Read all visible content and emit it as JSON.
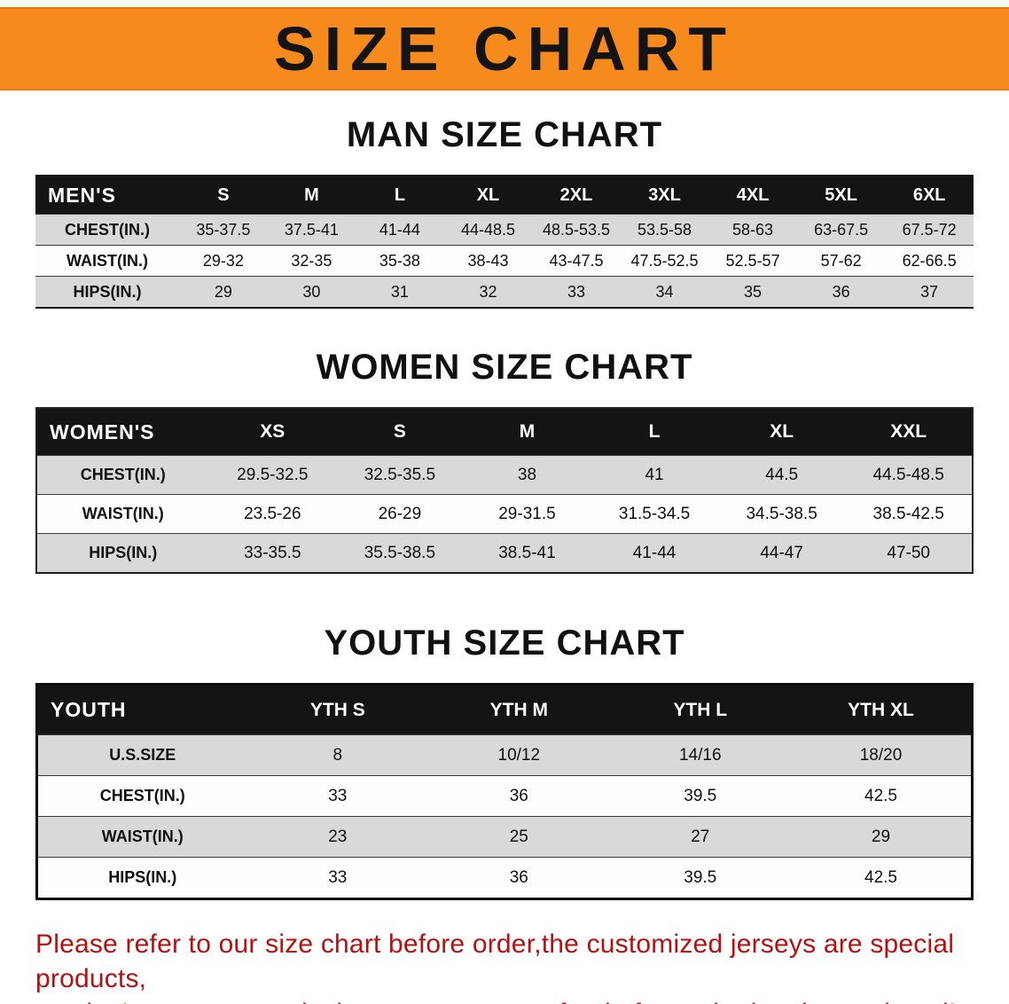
{
  "banner": {
    "title": "SIZE CHART",
    "bg_color": "#f68a1c",
    "text_color": "#141414"
  },
  "sections": [
    {
      "heading": "MAN SIZE CHART",
      "table": {
        "header": [
          "MEN'S",
          "S",
          "M",
          "L",
          "XL",
          "2XL",
          "3XL",
          "4XL",
          "5XL",
          "6XL"
        ],
        "rows": [
          [
            "CHEST(IN.)",
            "35-37.5",
            "37.5-41",
            "41-44",
            "44-48.5",
            "48.5-53.5",
            "53.5-58",
            "58-63",
            "63-67.5",
            "67.5-72"
          ],
          [
            "WAIST(IN.)",
            "29-32",
            "32-35",
            "35-38",
            "38-43",
            "43-47.5",
            "47.5-52.5",
            "52.5-57",
            "57-62",
            "62-66.5"
          ],
          [
            "HIPS(IN.)",
            "29",
            "30",
            "31",
            "32",
            "33",
            "34",
            "35",
            "36",
            "37"
          ]
        ]
      }
    },
    {
      "heading": "WOMEN SIZE CHART",
      "table": {
        "header": [
          "WOMEN'S",
          "XS",
          "S",
          "M",
          "L",
          "XL",
          "XXL"
        ],
        "rows": [
          [
            "CHEST(IN.)",
            "29.5-32.5",
            "32.5-35.5",
            "38",
            "41",
            "44.5",
            "44.5-48.5"
          ],
          [
            "WAIST(IN.)",
            "23.5-26",
            "26-29",
            "29-31.5",
            "31.5-34.5",
            "34.5-38.5",
            "38.5-42.5"
          ],
          [
            "HIPS(IN.)",
            "33-35.5",
            "35.5-38.5",
            "38.5-41",
            "41-44",
            "44-47",
            "47-50"
          ]
        ]
      }
    },
    {
      "heading": "YOUTH SIZE CHART",
      "table": {
        "header": [
          "YOUTH",
          "YTH S",
          "YTH M",
          "YTH L",
          "YTH XL"
        ],
        "rows": [
          [
            "U.S.SIZE",
            "8",
            "10/12",
            "14/16",
            "18/20"
          ],
          [
            "CHEST(IN.)",
            "33",
            "36",
            "39.5",
            "42.5"
          ],
          [
            "WAIST(IN.)",
            "23",
            "25",
            "27",
            "29"
          ],
          [
            "HIPS(IN.)",
            "33",
            "36",
            "39.5",
            "42.5"
          ]
        ]
      }
    }
  ],
  "footer": {
    "line1": "Please refer to our size chart before order,the customized jerseys are special products,",
    "line2": "we don't accept cancel, change, teturn or refund after order has been placed!",
    "text_color": "#b51111"
  }
}
